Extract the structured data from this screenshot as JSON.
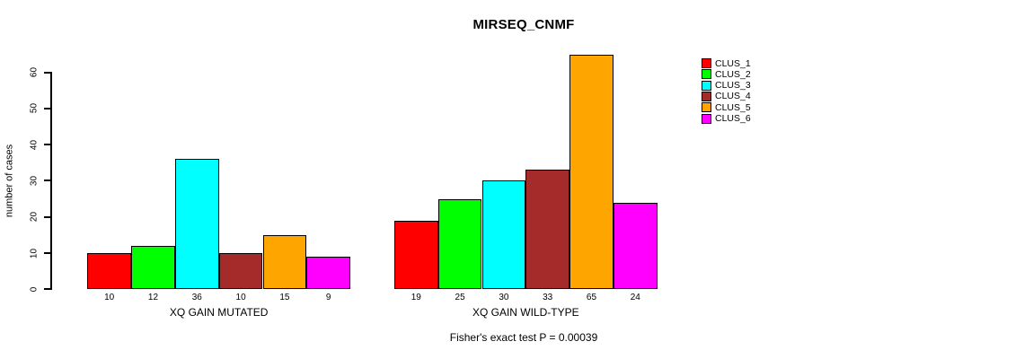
{
  "chart_data": {
    "type": "bar",
    "title": "MIRSEQ_CNMF",
    "xlabel": "",
    "ylabel": "number of cases",
    "categories": [
      "XQ GAIN MUTATED",
      "XQ GAIN WILD-TYPE"
    ],
    "series": [
      {
        "name": "CLUS_1",
        "color": "#FF0000",
        "values": [
          10,
          19
        ]
      },
      {
        "name": "CLUS_2",
        "color": "#00FF00",
        "values": [
          12,
          25
        ]
      },
      {
        "name": "CLUS_3",
        "color": "#00FFFF",
        "values": [
          36,
          30
        ]
      },
      {
        "name": "CLUS_4",
        "color": "#A52A2A",
        "values": [
          10,
          33
        ]
      },
      {
        "name": "CLUS_5",
        "color": "#FFA500",
        "values": [
          15,
          65
        ]
      },
      {
        "name": "CLUS_6",
        "color": "#FF00FF",
        "values": [
          9,
          24
        ]
      }
    ],
    "y_ticks": [
      0,
      10,
      20,
      30,
      40,
      50,
      60
    ],
    "ylim": [
      0,
      66
    ],
    "grid": false,
    "bar_borders": "#000000",
    "bar_value_labels": true,
    "legend_position": "right",
    "legend_entries": [
      "CLUS_1",
      "CLUS_2",
      "CLUS_3",
      "CLUS_4",
      "CLUS_5",
      "CLUS_6"
    ],
    "annotation": "Fisher's exact test P = 0.00039"
  }
}
